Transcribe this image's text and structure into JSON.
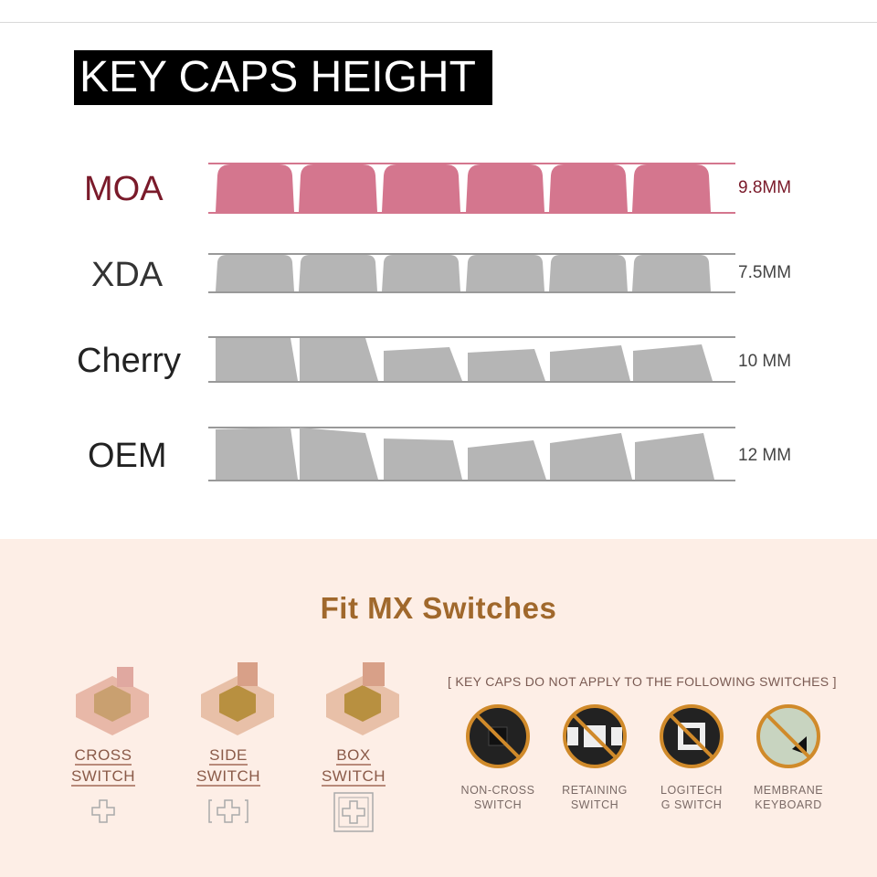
{
  "title": "KEY CAPS HEIGHT",
  "profiles": [
    {
      "name": "MOA",
      "height": "9.8MM",
      "color": "#d4768e",
      "label_color": "#7a1a2a"
    },
    {
      "name": "XDA",
      "height": "7.5MM",
      "color": "#b5b5b5",
      "label_color": "#333333"
    },
    {
      "name": "Cherry",
      "height": "10 MM",
      "color": "#b5b5b5",
      "label_color": "#222222"
    },
    {
      "name": "OEM",
      "height": "12 MM",
      "color": "#b5b5b5",
      "label_color": "#222222"
    }
  ],
  "fit": {
    "heading": "Fit MX Switches",
    "switches": [
      {
        "line1": "CROSS",
        "line2": "SWITCH",
        "icon": "cross-stem-icon"
      },
      {
        "line1": "SIDE",
        "line2": "SWITCH",
        "icon": "side-stem-icon"
      },
      {
        "line1": "BOX",
        "line2": "SWITCH",
        "icon": "box-stem-icon"
      }
    ],
    "note": "[ KEY CAPS DO NOT APPLY TO THE FOLLOWING SWITCHES ]",
    "unsupported": [
      {
        "line1": "NON-CROSS",
        "line2": "SWITCH"
      },
      {
        "line1": "RETAINING",
        "line2": "SWITCH"
      },
      {
        "line1": "LOGITECH",
        "line2": "G SWITCH"
      },
      {
        "line1": "MEMBRANE",
        "line2": "KEYBOARD"
      }
    ],
    "accent": "#a0682c"
  }
}
